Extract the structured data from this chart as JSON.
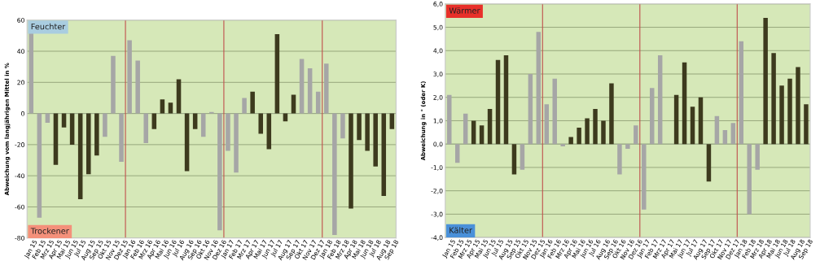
{
  "chart_data": [
    {
      "type": "bar",
      "ylabel": "Abweichung vom langjährigen Mittel in %",
      "categories": [
        "Jan 15",
        "Feb 15",
        "Mrz 15",
        "Apr 15",
        "Mai 15",
        "Jun 15",
        "Jul 15",
        "Aug 15",
        "Sep 15",
        "Okt 15",
        "Nov 15",
        "Dez 15",
        "Jan 16",
        "Feb 16",
        "Mrz 16",
        "Apr 16",
        "Mai 16",
        "Jun 16",
        "Jul 16",
        "Aug 16",
        "Sep 16",
        "Okt 16",
        "Nov 16",
        "Dez 16",
        "Jan 17",
        "Feb 17",
        "Mrz 17",
        "Apr 17",
        "Mai 17",
        "Jun 17",
        "Jul 17",
        "Aug 17",
        "Sep 17",
        "Okt 17",
        "Nov 17",
        "Dez 17",
        "Jan 18",
        "Feb 18",
        "Mrz 18",
        "Apr 18",
        "Mai 18",
        "Jun 18",
        "Jul 18",
        "Aug 18",
        "Sep 18"
      ],
      "values": [
        52,
        -67,
        -6,
        -33,
        -9,
        -20,
        -55,
        -39,
        -27,
        -15,
        37,
        -31,
        47,
        34,
        -19,
        -10,
        9,
        7,
        22,
        -37,
        -10,
        -15,
        1,
        -75,
        -24,
        -38,
        10,
        14,
        -13,
        -23,
        51,
        -5,
        12,
        35,
        29,
        14,
        32,
        -78,
        -16,
        -61,
        -17,
        -24,
        -34,
        -53,
        -10
      ],
      "colors": [
        "#a6a6a6",
        "#a6a6a6",
        "#a6a6a6",
        "#3d3a1e",
        "#3d3a1e",
        "#3d3a1e",
        "#3d3a1e",
        "#3d3a1e",
        "#3d3a1e",
        "#a6a6a6",
        "#a6a6a6",
        "#a6a6a6",
        "#a6a6a6",
        "#a6a6a6",
        "#a6a6a6",
        "#3d3a1e",
        "#3d3a1e",
        "#3d3a1e",
        "#3d3a1e",
        "#3d3a1e",
        "#3d3a1e",
        "#a6a6a6",
        "#a6a6a6",
        "#a6a6a6",
        "#a6a6a6",
        "#a6a6a6",
        "#a6a6a6",
        "#3d3a1e",
        "#3d3a1e",
        "#3d3a1e",
        "#3d3a1e",
        "#3d3a1e",
        "#3d3a1e",
        "#a6a6a6",
        "#a6a6a6",
        "#a6a6a6",
        "#a6a6a6",
        "#a6a6a6",
        "#a6a6a6",
        "#3d3a1e",
        "#3d3a1e",
        "#3d3a1e",
        "#3d3a1e",
        "#3d3a1e",
        "#3d3a1e"
      ],
      "ylim": [
        -80,
        60
      ],
      "yticks": [
        -80,
        -60,
        -40,
        -20,
        0,
        20,
        40,
        60
      ],
      "grid": "y",
      "annotations": [
        "Feuchter",
        "Trockener"
      ]
    },
    {
      "type": "bar",
      "ylabel": "Abweichung in ° (oder K)",
      "categories": [
        "Jan 15",
        "Feb 15",
        "Mrz 15",
        "Apr 15",
        "Mai 15",
        "Jun 15",
        "Jul 15",
        "Aug 15",
        "Sep 15",
        "Okt 15",
        "Nov 15",
        "Dez 15",
        "Jan 16",
        "Feb 16",
        "Mrz 16",
        "Apr 16",
        "Mai 16",
        "Jun 16",
        "Jul 16",
        "Aug 16",
        "Sep 16",
        "Okt 16",
        "Nov 16",
        "Dez 16",
        "Jan 17",
        "Feb 17",
        "Mrz 17",
        "Apr 17",
        "Mai 17",
        "Jun 17",
        "Jul 17",
        "Aug 17",
        "Sep 17",
        "Okt 17",
        "Nov 17",
        "Dez 17",
        "Jan 18",
        "Feb 18",
        "Mrz 18",
        "Apr 18",
        "Mai 18",
        "Jun 18",
        "Jul 18",
        "Aug 18",
        "Sep 18"
      ],
      "values": [
        2.1,
        -0.8,
        1.3,
        1.0,
        0.8,
        1.5,
        3.6,
        3.8,
        -1.3,
        -1.1,
        3.0,
        4.8,
        1.7,
        2.8,
        -0.1,
        0.3,
        0.7,
        1.1,
        1.5,
        1.0,
        2.6,
        -1.3,
        -0.2,
        0.8,
        -2.8,
        2.4,
        3.8,
        0.0,
        2.1,
        3.5,
        1.6,
        2.0,
        -1.6,
        1.2,
        0.6,
        0.9,
        4.4,
        -3.0,
        -1.1,
        5.4,
        3.9,
        2.5,
        2.8,
        3.3,
        1.7
      ],
      "colors": [
        "#a6a6a6",
        "#a6a6a6",
        "#a6a6a6",
        "#3d3a1e",
        "#3d3a1e",
        "#3d3a1e",
        "#3d3a1e",
        "#3d3a1e",
        "#3d3a1e",
        "#a6a6a6",
        "#a6a6a6",
        "#a6a6a6",
        "#a6a6a6",
        "#a6a6a6",
        "#a6a6a6",
        "#3d3a1e",
        "#3d3a1e",
        "#3d3a1e",
        "#3d3a1e",
        "#3d3a1e",
        "#3d3a1e",
        "#a6a6a6",
        "#a6a6a6",
        "#a6a6a6",
        "#a6a6a6",
        "#a6a6a6",
        "#a6a6a6",
        "#3d3a1e",
        "#3d3a1e",
        "#3d3a1e",
        "#3d3a1e",
        "#3d3a1e",
        "#3d3a1e",
        "#a6a6a6",
        "#a6a6a6",
        "#a6a6a6",
        "#a6a6a6",
        "#a6a6a6",
        "#a6a6a6",
        "#3d3a1e",
        "#3d3a1e",
        "#3d3a1e",
        "#3d3a1e",
        "#3d3a1e",
        "#3d3a1e"
      ],
      "ylim": [
        -4.0,
        6.0
      ],
      "yticks": [
        {
          "value": -4,
          "label": "-4,0"
        },
        {
          "value": -3,
          "label": "-3,0"
        },
        {
          "value": -2,
          "label": "-2,0"
        },
        {
          "value": -1,
          "label": "-1,0"
        },
        {
          "value": 0,
          "label": "0,0"
        },
        {
          "value": 1,
          "label": "1,0"
        },
        {
          "value": 2,
          "label": "2,0"
        },
        {
          "value": 3,
          "label": "3,0"
        },
        {
          "value": 4,
          "label": "4,0"
        },
        {
          "value": 5,
          "label": "5,0"
        },
        {
          "value": 6,
          "label": "6,0"
        }
      ],
      "grid": "y",
      "annotations": [
        "Wärmer",
        "Kälter"
      ]
    }
  ]
}
